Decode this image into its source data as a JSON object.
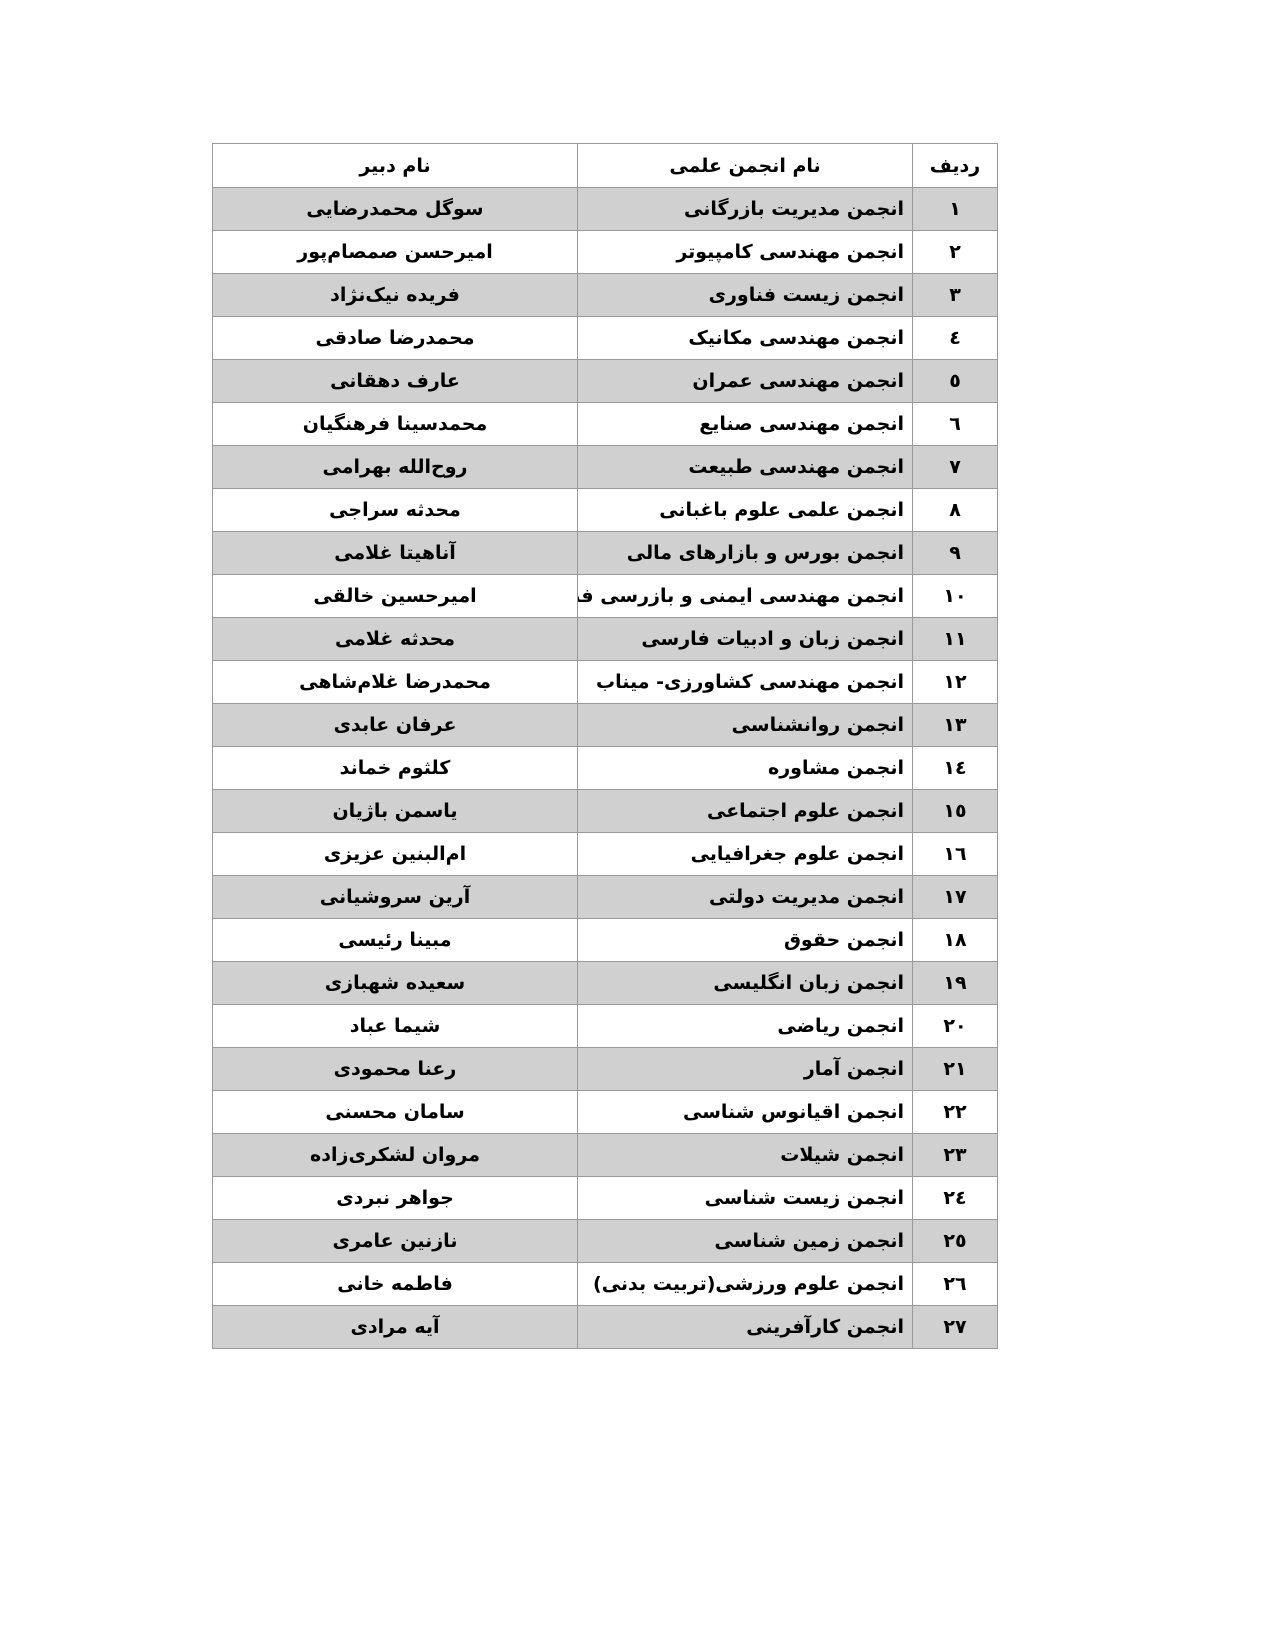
{
  "table": {
    "headers": {
      "row": "ردیف",
      "association": "نام انجمن علمی",
      "secretary": "نام دبیر"
    },
    "row_shading_color": "#d0d0d0",
    "rows": [
      {
        "row": "۱",
        "association": "انجمن مدیریت بازرگانی",
        "secretary": "سوگل محمدرضایی"
      },
      {
        "row": "۲",
        "association": "انجمن مهندسی کامپیوتر",
        "secretary": "امیرحسن صمصام‌پور"
      },
      {
        "row": "۳",
        "association": "انجمن زیست فناوری",
        "secretary": "فریده نیک‌نژاد"
      },
      {
        "row": "٤",
        "association": "انجمن مهندسی مکانیک",
        "secretary": "محمدرضا صادقی"
      },
      {
        "row": "٥",
        "association": "انجمن مهندسی عمران",
        "secretary": "عارف دهقانی"
      },
      {
        "row": "٦",
        "association": "انجمن مهندسی صنایع",
        "secretary": "محمدسینا فرهنگیان"
      },
      {
        "row": "۷",
        "association": "انجمن مهندسی طبیعت",
        "secretary": "روح‌الله بهرامی"
      },
      {
        "row": "۸",
        "association": "انجمن علمی علوم باغبانی",
        "secretary": "محدثه سراجی"
      },
      {
        "row": "۹",
        "association": "انجمن بورس و بازارهای مالی",
        "secretary": "آناهیتا غلامی"
      },
      {
        "row": "۱۰",
        "association": "انجمن مهندسی ایمنی و بازرسی فنی",
        "secretary": "امیرحسین خالقی"
      },
      {
        "row": "۱۱",
        "association": "انجمن زبان و ادبیات فارسی",
        "secretary": "محدثه غلامی"
      },
      {
        "row": "۱۲",
        "association": "انجمن مهندسی کشاورزی- میناب",
        "secretary": "محمدرضا غلام‌شاهی"
      },
      {
        "row": "۱۳",
        "association": "انجمن روانشناسی",
        "secretary": "عرفان عابدی"
      },
      {
        "row": "۱٤",
        "association": "انجمن مشاوره",
        "secretary": "کلثوم خماند"
      },
      {
        "row": "۱٥",
        "association": "انجمن علوم اجتماعی",
        "secretary": "یاسمن باژیان"
      },
      {
        "row": "۱٦",
        "association": "انجمن علوم جغرافیایی",
        "secretary": "ام‌البنین عزیزی"
      },
      {
        "row": "۱۷",
        "association": "انجمن مدیریت دولتی",
        "secretary": "آرین سروشیانی"
      },
      {
        "row": "۱۸",
        "association": "انجمن حقوق",
        "secretary": "مبینا رئیسی"
      },
      {
        "row": "۱۹",
        "association": "انجمن زبان انگلیسی",
        "secretary": "سعیده شهبازی"
      },
      {
        "row": "۲۰",
        "association": "انجمن ریاضی",
        "secretary": "شیما عباد"
      },
      {
        "row": "۲۱",
        "association": "انجمن آمار",
        "secretary": "رعنا محمودی"
      },
      {
        "row": "۲۲",
        "association": "انجمن اقیانوس شناسی",
        "secretary": "سامان محسنی"
      },
      {
        "row": "۲۳",
        "association": "انجمن شیلات",
        "secretary": "مروان لشکری‌زاده"
      },
      {
        "row": "۲٤",
        "association": "انجمن زیست شناسی",
        "secretary": "جواهر نبردی"
      },
      {
        "row": "۲٥",
        "association": "انجمن زمین شناسی",
        "secretary": "نازنین عامری"
      },
      {
        "row": "۲٦",
        "association": "انجمن علوم ورزشی(تربیت بدنی)",
        "secretary": "فاطمه خانی"
      },
      {
        "row": "۲۷",
        "association": "انجمن کارآفرینی",
        "secretary": "آیه مرادی"
      }
    ]
  }
}
